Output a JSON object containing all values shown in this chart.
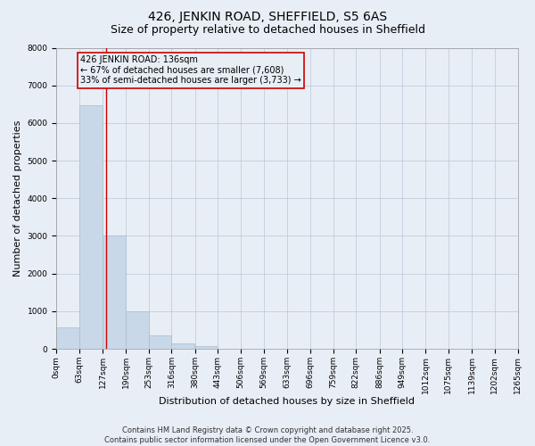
{
  "title": "426, JENKIN ROAD, SHEFFIELD, S5 6AS",
  "subtitle": "Size of property relative to detached houses in Sheffield",
  "xlabel": "Distribution of detached houses by size in Sheffield",
  "ylabel": "Number of detached properties",
  "bar_color": "#c8d8e8",
  "bar_edge_color": "#a8bece",
  "grid_color": "#b8c8d8",
  "background_color": "#e8eef5",
  "bins": [
    "0sqm",
    "63sqm",
    "127sqm",
    "190sqm",
    "253sqm",
    "316sqm",
    "380sqm",
    "443sqm",
    "506sqm",
    "569sqm",
    "633sqm",
    "696sqm",
    "759sqm",
    "822sqm",
    "886sqm",
    "949sqm",
    "1012sqm",
    "1075sqm",
    "1139sqm",
    "1202sqm",
    "1265sqm"
  ],
  "bin_edges": [
    0,
    63,
    127,
    190,
    253,
    316,
    380,
    443,
    506,
    569,
    633,
    696,
    759,
    822,
    886,
    949,
    1012,
    1075,
    1139,
    1202,
    1265
  ],
  "values": [
    580,
    6480,
    3000,
    1000,
    360,
    150,
    80,
    0,
    0,
    0,
    0,
    0,
    0,
    0,
    0,
    0,
    0,
    0,
    0,
    0
  ],
  "ylim": [
    0,
    8000
  ],
  "yticks": [
    0,
    1000,
    2000,
    3000,
    4000,
    5000,
    6000,
    7000,
    8000
  ],
  "property_line_x": 136,
  "property_line_color": "#cc0000",
  "annotation_text": "426 JENKIN ROAD: 136sqm\n← 67% of detached houses are smaller (7,608)\n33% of semi-detached houses are larger (3,733) →",
  "annotation_box_color": "#cc0000",
  "footer_line1": "Contains HM Land Registry data © Crown copyright and database right 2025.",
  "footer_line2": "Contains public sector information licensed under the Open Government Licence v3.0.",
  "title_fontsize": 10,
  "subtitle_fontsize": 9,
  "tick_fontsize": 6.5,
  "ylabel_fontsize": 8,
  "xlabel_fontsize": 8,
  "annotation_fontsize": 7,
  "footer_fontsize": 6
}
